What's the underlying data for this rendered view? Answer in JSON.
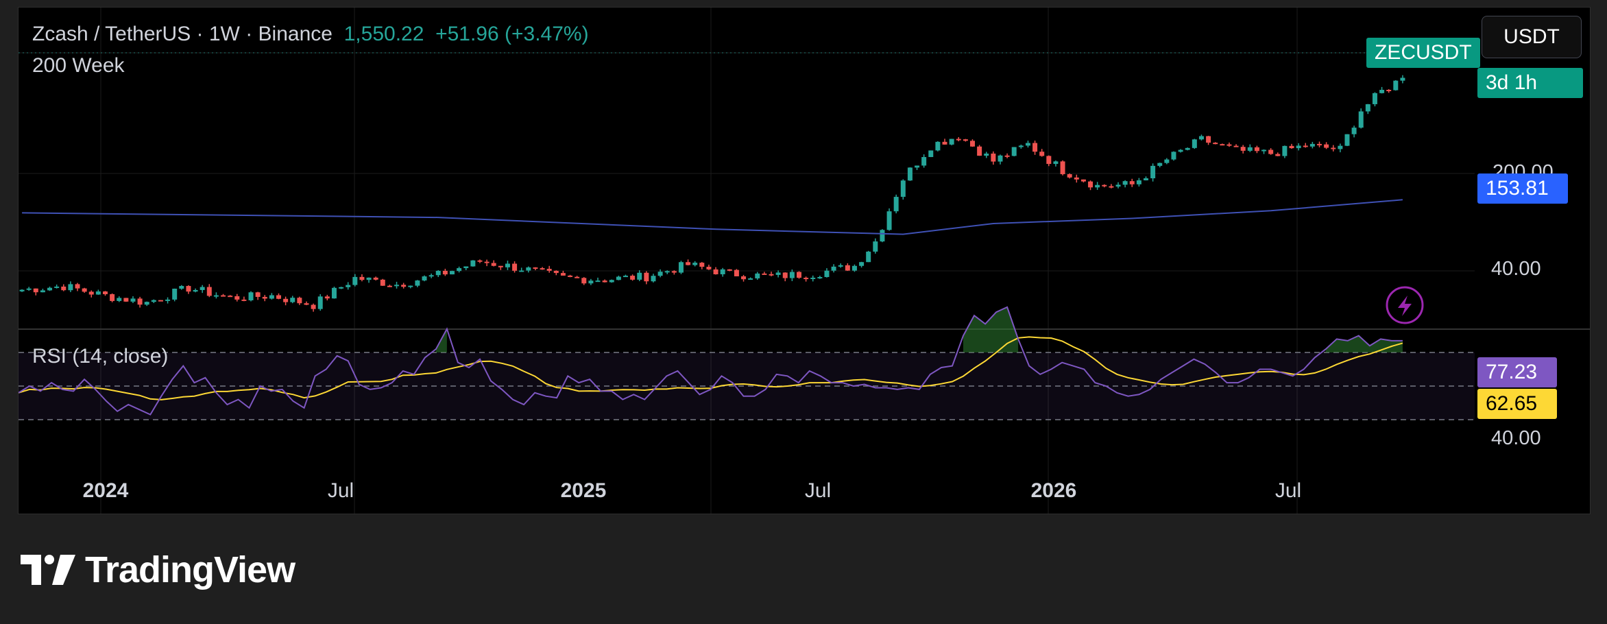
{
  "header": {
    "symbol_line": "Zcash / TetherUS · 1W · Binance",
    "last_price": "1,550.22",
    "change": "+51.96 (+3.47%)",
    "ma_label": "200 Week",
    "rsi_label": "RSI (14, close)"
  },
  "currency_button": "USDT",
  "tags": {
    "ticker": "ZECUSDT",
    "countdown": "3d 1h",
    "ma_value": "153.81",
    "rsi_value": "77.23",
    "rsi_ma_value": "62.65"
  },
  "axis": {
    "price_partial": "200.00",
    "price_40": "40.00",
    "rsi_40": "40.00"
  },
  "time_labels": [
    {
      "text": "2024",
      "major": true
    },
    {
      "text": "Jul",
      "major": false
    },
    {
      "text": "2025",
      "major": true
    },
    {
      "text": "Jul",
      "major": false
    },
    {
      "text": "2026",
      "major": true
    },
    {
      "text": "Jul",
      "major": false
    }
  ],
  "brand": "TradingView",
  "colors": {
    "up": "#26a69a",
    "down": "#ef5350",
    "ma": "#3f51b5",
    "rsi": "#7e57c2",
    "rsi_ma": "#fdd835",
    "background": "#000000"
  },
  "chart_data": {
    "type": "candlestick",
    "timeframe": "1W",
    "scale": "log",
    "price_axis_ticks": [
      40,
      200
    ],
    "time_ticks": [
      "2024",
      "Jul",
      "2025",
      "Jul",
      "2026",
      "Jul"
    ],
    "candle_close_path": [
      {
        "t": 0,
        "c": 28
      },
      {
        "t": 6,
        "c": 30
      },
      {
        "t": 12,
        "c": 25
      },
      {
        "t": 18,
        "c": 22
      },
      {
        "t": 24,
        "c": 29
      },
      {
        "t": 30,
        "c": 24
      },
      {
        "t": 36,
        "c": 25
      },
      {
        "t": 42,
        "c": 21
      },
      {
        "t": 48,
        "c": 35
      },
      {
        "t": 54,
        "c": 31
      },
      {
        "t": 60,
        "c": 37
      },
      {
        "t": 66,
        "c": 48
      },
      {
        "t": 72,
        "c": 42
      },
      {
        "t": 78,
        "c": 35
      },
      {
        "t": 84,
        "c": 34
      },
      {
        "t": 90,
        "c": 36
      },
      {
        "t": 96,
        "c": 45
      },
      {
        "t": 102,
        "c": 38
      },
      {
        "t": 108,
        "c": 36
      },
      {
        "t": 114,
        "c": 38
      },
      {
        "t": 120,
        "c": 44
      },
      {
        "t": 123,
        "c": 70
      },
      {
        "t": 127,
        "c": 230
      },
      {
        "t": 131,
        "c": 430
      },
      {
        "t": 135,
        "c": 520
      },
      {
        "t": 140,
        "c": 320
      },
      {
        "t": 145,
        "c": 440
      },
      {
        "t": 150,
        "c": 270
      },
      {
        "t": 155,
        "c": 200
      },
      {
        "t": 160,
        "c": 205
      },
      {
        "t": 165,
        "c": 330
      },
      {
        "t": 170,
        "c": 480
      },
      {
        "t": 175,
        "c": 390
      },
      {
        "t": 180,
        "c": 370
      },
      {
        "t": 185,
        "c": 430
      },
      {
        "t": 190,
        "c": 400
      },
      {
        "t": 193,
        "c": 840
      },
      {
        "t": 196,
        "c": 1200
      },
      {
        "t": 199,
        "c": 1550
      }
    ],
    "ma200_path": [
      {
        "t": 0,
        "c": 120
      },
      {
        "t": 60,
        "c": 110
      },
      {
        "t": 100,
        "c": 88
      },
      {
        "t": 127,
        "c": 80
      },
      {
        "t": 140,
        "c": 98
      },
      {
        "t": 160,
        "c": 108
      },
      {
        "t": 180,
        "c": 125
      },
      {
        "t": 199,
        "c": 153.81
      }
    ],
    "ma200_last": 153.81,
    "last_close": 1550.22,
    "change": 51.96,
    "change_pct": 3.47,
    "rsi": {
      "length": 14,
      "source": "close",
      "levels": [
        70,
        50,
        30
      ],
      "axis_tick": 40,
      "last": 77.23,
      "ma_last": 62.65,
      "values": [
        46,
        50,
        47,
        52,
        48,
        47,
        54,
        48,
        41,
        35,
        39,
        36,
        33,
        44,
        54,
        62,
        52,
        55,
        46,
        39,
        42,
        37,
        50,
        47,
        48,
        41,
        37,
        56,
        60,
        68,
        65,
        51,
        48,
        49,
        52,
        59,
        57,
        67,
        72,
        84,
        64,
        61,
        66,
        53,
        48,
        42,
        39,
        46,
        44,
        43,
        56,
        52,
        54,
        47,
        47,
        42,
        45,
        42,
        49,
        56,
        59,
        52,
        45,
        48,
        56,
        52,
        44,
        44,
        48,
        57,
        56,
        52,
        59,
        56,
        52,
        52,
        50,
        51,
        49,
        49,
        48,
        49,
        48,
        57,
        61,
        62,
        80,
        92,
        87,
        94,
        97,
        78,
        62,
        57,
        60,
        64,
        62,
        60,
        52,
        50,
        46,
        44,
        45,
        48,
        54,
        58,
        62,
        66,
        63,
        58,
        52,
        52,
        55,
        60,
        60,
        58,
        56,
        60,
        67,
        72,
        78,
        77,
        80,
        74,
        78,
        77,
        77
      ]
    }
  }
}
